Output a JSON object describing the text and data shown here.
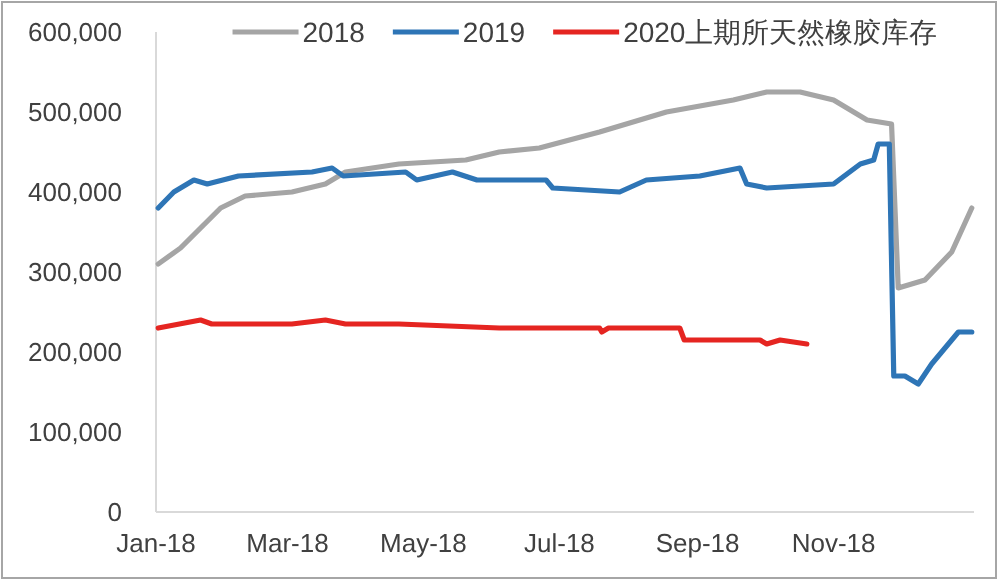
{
  "chart_data": {
    "type": "line",
    "legend": "top",
    "grid": false,
    "marker": "none",
    "line_style": "solid",
    "xlim": [
      "2018-01-01",
      "2019-01-03"
    ],
    "xticks": [
      {
        "value": "2018-01-01",
        "label": "Jan-18"
      },
      {
        "value": "2018-03-01",
        "label": "Mar-18"
      },
      {
        "value": "2018-05-01",
        "label": "May-18"
      },
      {
        "value": "2018-07-01",
        "label": "Jul-18"
      },
      {
        "value": "2018-09-01",
        "label": "Sep-18"
      },
      {
        "value": "2018-11-01",
        "label": "Nov-18"
      }
    ],
    "ylim": [
      0,
      600000
    ],
    "yticks": [
      0,
      {
        "value": 100000,
        "label": "100,000"
      },
      {
        "value": 200000,
        "label": "200,000"
      },
      {
        "value": 300000,
        "label": "300,000"
      },
      {
        "value": 400000,
        "label": "400,000"
      },
      {
        "value": 500000,
        "label": "500,000"
      },
      {
        "value": 600000,
        "label": "600,000"
      }
    ],
    "series": [
      {
        "name": "2018",
        "color": "#a5a5a5",
        "x": [
          "2018-01-02",
          "2018-01-12",
          "2018-01-21",
          "2018-01-30",
          "2018-02-10",
          "2018-03-03",
          "2018-03-18",
          "2018-03-27",
          "2018-04-20",
          "2018-05-20",
          "2018-06-04",
          "2018-06-22",
          "2018-07-19",
          "2018-08-18",
          "2018-09-17",
          "2018-10-02",
          "2018-10-17",
          "2018-11-01",
          "2018-11-10",
          "2018-11-16",
          "2018-11-27",
          "2018-11-30",
          "2018-12-12",
          "2018-12-24",
          "2019-01-02"
        ],
        "values": [
          310000,
          330000,
          355000,
          380000,
          395000,
          400000,
          410000,
          425000,
          435000,
          440000,
          450000,
          455000,
          475000,
          500000,
          515000,
          525000,
          525000,
          515000,
          500000,
          490000,
          485000,
          280000,
          290000,
          325000,
          380000
        ]
      },
      {
        "name": "2019",
        "color": "#2e75b6",
        "x": [
          "2018-01-02",
          "2018-01-09",
          "2018-01-18",
          "2018-01-24",
          "2018-02-07",
          "2018-03-12",
          "2018-03-21",
          "2018-03-26",
          "2018-04-23",
          "2018-04-28",
          "2018-05-14",
          "2018-05-25",
          "2018-06-25",
          "2018-06-28",
          "2018-07-28",
          "2018-08-09",
          "2018-09-02",
          "2018-09-20",
          "2018-09-23",
          "2018-10-02",
          "2018-11-01",
          "2018-11-13",
          "2018-11-19",
          "2018-11-21",
          "2018-11-26",
          "2018-11-28",
          "2018-12-03",
          "2018-12-09",
          "2018-12-15",
          "2018-12-27",
          "2019-01-02"
        ],
        "values": [
          380000,
          400000,
          415000,
          410000,
          420000,
          425000,
          430000,
          420000,
          425000,
          415000,
          425000,
          415000,
          415000,
          405000,
          400000,
          415000,
          420000,
          430000,
          410000,
          405000,
          410000,
          435000,
          440000,
          460000,
          460000,
          170000,
          170000,
          160000,
          185000,
          225000,
          225000
        ]
      },
      {
        "name": "2020上期所天然橡胶库存",
        "color": "#e52521",
        "x": [
          "2018-01-02",
          "2018-01-21",
          "2018-01-26",
          "2018-03-03",
          "2018-03-18",
          "2018-03-27",
          "2018-04-20",
          "2018-06-04",
          "2018-07-19",
          "2018-07-20",
          "2018-07-23",
          "2018-08-24",
          "2018-08-26",
          "2018-09-29",
          "2018-10-02",
          "2018-10-08",
          "2018-10-20"
        ],
        "values": [
          230000,
          240000,
          235000,
          235000,
          240000,
          235000,
          235000,
          230000,
          230000,
          225000,
          230000,
          230000,
          215000,
          215000,
          210000,
          215000,
          210000
        ]
      }
    ]
  }
}
